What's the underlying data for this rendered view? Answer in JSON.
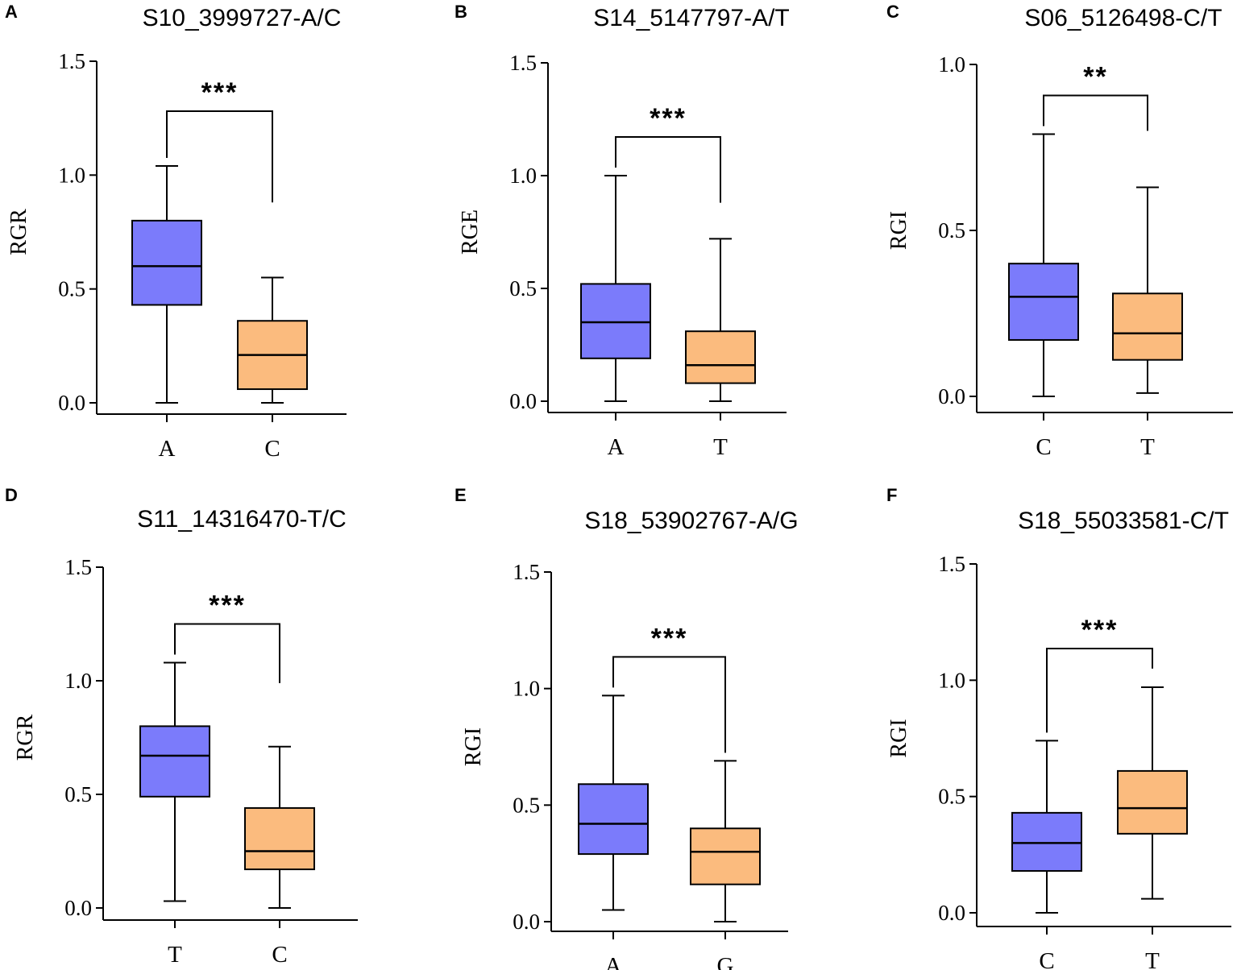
{
  "figure": {
    "background": "#ffffff",
    "colors": {
      "blue": "#7b7bfb",
      "orange": "#fbbb7e",
      "line": "#000000"
    }
  },
  "chart_data": [
    {
      "panel": "A",
      "type": "box",
      "title": "S10_3999727-A/C",
      "ylabel": "RGR",
      "ylim": [
        0,
        1.5
      ],
      "yticks": [
        "0.0",
        "0.5",
        "1.0",
        "1.5"
      ],
      "ytick_values": [
        0,
        0.5,
        1.0,
        1.5
      ],
      "categories": [
        "A",
        "C"
      ],
      "significance": "***",
      "bracket_right_end": 0.88,
      "boxes": [
        {
          "category": "A",
          "min": 0.0,
          "q1": 0.43,
          "median": 0.6,
          "q3": 0.8,
          "max": 1.04,
          "color": "#7b7bfb"
        },
        {
          "category": "C",
          "min": 0.0,
          "q1": 0.06,
          "median": 0.21,
          "q3": 0.36,
          "max": 0.55,
          "color": "#fbbb7e"
        }
      ]
    },
    {
      "panel": "B",
      "type": "box",
      "title": "S14_5147797-A/T",
      "ylabel": "RGE",
      "ylim": [
        0,
        1.5
      ],
      "yticks": [
        "0.0",
        "0.5",
        "1.0",
        "1.5"
      ],
      "ytick_values": [
        0,
        0.5,
        1.0,
        1.5
      ],
      "categories": [
        "A",
        "T"
      ],
      "significance": "***",
      "bracket_right_end": 0.88,
      "boxes": [
        {
          "category": "A",
          "min": 0.0,
          "q1": 0.19,
          "median": 0.35,
          "q3": 0.52,
          "max": 1.0,
          "color": "#7b7bfb"
        },
        {
          "category": "T",
          "min": 0.0,
          "q1": 0.08,
          "median": 0.16,
          "q3": 0.31,
          "max": 0.72,
          "color": "#fbbb7e"
        }
      ]
    },
    {
      "panel": "C",
      "type": "box",
      "title": "S06_5126498-C/T",
      "ylabel": "RGI",
      "ylim": [
        0,
        1.0
      ],
      "yticks": [
        "0.0",
        "0.5",
        "1.0"
      ],
      "ytick_values": [
        0,
        0.5,
        1.0
      ],
      "categories": [
        "C",
        "T"
      ],
      "significance": "**",
      "bracket_right_end": 0.8,
      "boxes": [
        {
          "category": "C",
          "min": 0.0,
          "q1": 0.17,
          "median": 0.3,
          "q3": 0.4,
          "max": 0.79,
          "color": "#7b7bfb"
        },
        {
          "category": "T",
          "min": 0.01,
          "q1": 0.11,
          "median": 0.19,
          "q3": 0.31,
          "max": 0.63,
          "color": "#fbbb7e"
        }
      ]
    },
    {
      "panel": "D",
      "type": "box",
      "title": "S11_14316470-T/C",
      "ylabel": "RGR",
      "ylim": [
        0,
        1.5
      ],
      "yticks": [
        "0.0",
        "0.5",
        "1.0",
        "1.5"
      ],
      "ytick_values": [
        0,
        0.5,
        1.0,
        1.5
      ],
      "categories": [
        "T",
        "C"
      ],
      "significance": "***",
      "bracket_right_end": 0.99,
      "boxes": [
        {
          "category": "T",
          "min": 0.03,
          "q1": 0.49,
          "median": 0.67,
          "q3": 0.8,
          "max": 1.08,
          "color": "#7b7bfb"
        },
        {
          "category": "C",
          "min": 0.0,
          "q1": 0.17,
          "median": 0.25,
          "q3": 0.44,
          "max": 0.71,
          "color": "#fbbb7e"
        }
      ]
    },
    {
      "panel": "E",
      "type": "box",
      "title": "S18_53902767-A/G",
      "ylabel": "RGI",
      "ylim": [
        0,
        1.5
      ],
      "yticks": [
        "0.0",
        "0.5",
        "1.0",
        "1.5"
      ],
      "ytick_values": [
        0,
        0.5,
        1.0,
        1.5
      ],
      "categories": [
        "A",
        "G"
      ],
      "significance": "***",
      "bracket_right_end": 0.0,
      "boxes": [
        {
          "category": "A",
          "min": 0.05,
          "q1": 0.29,
          "median": 0.42,
          "q3": 0.59,
          "max": 0.97,
          "color": "#7b7bfb"
        },
        {
          "category": "G",
          "min": 0.0,
          "q1": 0.16,
          "median": 0.3,
          "q3": 0.4,
          "max": 0.69,
          "color": "#fbbb7e"
        }
      ]
    },
    {
      "panel": "F",
      "type": "box",
      "title": "S18_55033581-C/T",
      "ylabel": "RGI",
      "ylim": [
        0,
        1.5
      ],
      "yticks": [
        "0.0",
        "0.5",
        "1.0",
        "1.5"
      ],
      "ytick_values": [
        0,
        0.5,
        1.0,
        1.5
      ],
      "categories": [
        "C",
        "T"
      ],
      "significance": "***",
      "bracket_right_end": 1.05,
      "boxes": [
        {
          "category": "C",
          "min": 0.0,
          "q1": 0.18,
          "median": 0.3,
          "q3": 0.43,
          "max": 0.74,
          "color": "#7b7bfb"
        },
        {
          "category": "T",
          "min": 0.06,
          "q1": 0.34,
          "median": 0.45,
          "q3": 0.61,
          "max": 0.97,
          "color": "#fbbb7e"
        }
      ]
    }
  ]
}
